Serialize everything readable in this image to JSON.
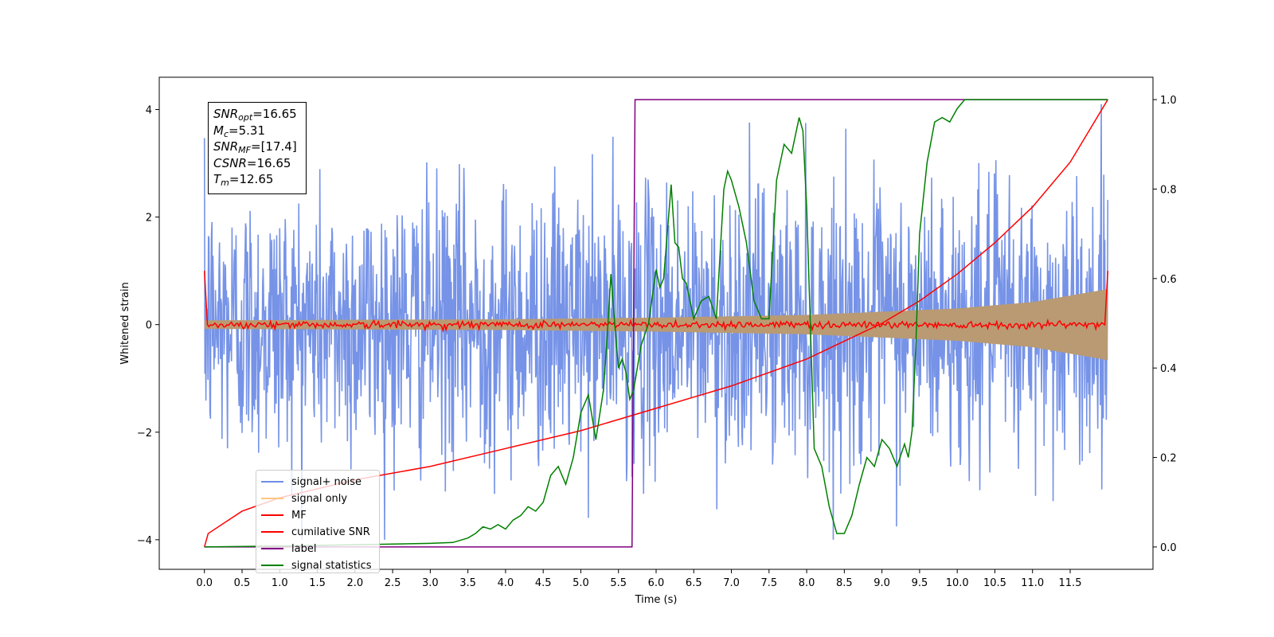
{
  "chart_data": {
    "type": "line",
    "xlabel": "Time (s)",
    "ylabel": "Whitened strain",
    "xlim": [
      -0.6,
      12.6
    ],
    "ylim": [
      -4.55,
      4.6
    ],
    "y2lim": [
      -0.05,
      1.05
    ],
    "x_ticks": [
      "0.0",
      "0.5",
      "1.0",
      "1.5",
      "2.0",
      "2.5",
      "3.0",
      "3.5",
      "4.0",
      "4.5",
      "5.0",
      "5.5",
      "6.0",
      "6.5",
      "7.0",
      "7.5",
      "8.0",
      "8.5",
      "9.0",
      "9.5",
      "10.0",
      "10.5",
      "11.0",
      "11.5"
    ],
    "y_ticks": [
      "4",
      "2",
      "0",
      "−2",
      "−4"
    ],
    "y2_ticks": [
      "1.0",
      "0.8",
      "0.6",
      "0.4",
      "0.2",
      "0.0"
    ],
    "annotation": {
      "snr_opt": "=16.65",
      "mc": "=5.31",
      "snr_mf": "=[17.4]",
      "csnr": "=16.65",
      "tm": "=12.65"
    },
    "series": [
      {
        "name": "signal+ noise",
        "color": "#6f8de6",
        "axis": "left",
        "description_values": {
          "amplitude_envelope": 2.8,
          "t_start": 0.0,
          "t_end": 12.0
        }
      },
      {
        "name": "signal only",
        "color": "#ffb347",
        "axis": "left",
        "envelope": {
          "t": [
            0.0,
            2.0,
            4.0,
            6.0,
            8.0,
            10.0,
            11.0,
            12.0
          ],
          "amp": [
            0.08,
            0.09,
            0.1,
            0.13,
            0.18,
            0.3,
            0.42,
            0.66
          ]
        }
      },
      {
        "name": "MF",
        "color": "#ff0000",
        "axis": "left",
        "description_values": {
          "baseline": 0.0,
          "start_value": 1.0,
          "end_value": 1.0
        }
      },
      {
        "name": "cumilative SNR",
        "color": "#ff0000",
        "axis": "right",
        "x": [
          0.0,
          0.05,
          0.5,
          1.0,
          2.0,
          3.0,
          4.0,
          5.0,
          6.0,
          7.0,
          8.0,
          8.5,
          9.0,
          9.5,
          10.0,
          10.5,
          11.0,
          11.5,
          12.0
        ],
        "y": [
          0.0,
          0.03,
          0.08,
          0.11,
          0.15,
          0.18,
          0.22,
          0.26,
          0.31,
          0.36,
          0.42,
          0.46,
          0.5,
          0.55,
          0.61,
          0.68,
          0.76,
          0.86,
          1.0
        ]
      },
      {
        "name": "label",
        "color": "#800080",
        "axis": "right",
        "x": [
          0.0,
          5.68,
          5.72,
          12.0
        ],
        "y": [
          0.0,
          0.0,
          1.0,
          1.0
        ]
      },
      {
        "name": "signal statistics",
        "color": "#008000",
        "axis": "right",
        "x": [
          0.0,
          1.0,
          2.0,
          3.0,
          3.3,
          3.5,
          3.6,
          3.7,
          3.8,
          3.9,
          4.0,
          4.1,
          4.2,
          4.3,
          4.4,
          4.5,
          4.6,
          4.7,
          4.8,
          4.9,
          5.0,
          5.1,
          5.2,
          5.3,
          5.35,
          5.4,
          5.45,
          5.5,
          5.55,
          5.6,
          5.65,
          5.7,
          5.8,
          5.9,
          6.0,
          6.05,
          6.1,
          6.2,
          6.25,
          6.3,
          6.35,
          6.4,
          6.5,
          6.6,
          6.7,
          6.8,
          6.9,
          6.95,
          7.0,
          7.1,
          7.2,
          7.3,
          7.4,
          7.5,
          7.6,
          7.7,
          7.8,
          7.85,
          7.9,
          7.95,
          8.0,
          8.1,
          8.2,
          8.3,
          8.4,
          8.5,
          8.6,
          8.7,
          8.8,
          8.9,
          9.0,
          9.1,
          9.2,
          9.3,
          9.35,
          9.4,
          9.45,
          9.5,
          9.6,
          9.7,
          9.8,
          9.9,
          10.0,
          10.1,
          10.2,
          10.4,
          11.0,
          12.0
        ],
        "y": [
          0.0,
          0.002,
          0.005,
          0.008,
          0.01,
          0.02,
          0.03,
          0.045,
          0.04,
          0.05,
          0.04,
          0.06,
          0.07,
          0.09,
          0.08,
          0.1,
          0.16,
          0.18,
          0.14,
          0.2,
          0.3,
          0.34,
          0.24,
          0.35,
          0.47,
          0.61,
          0.5,
          0.4,
          0.42,
          0.39,
          0.33,
          0.35,
          0.45,
          0.5,
          0.62,
          0.58,
          0.6,
          0.81,
          0.68,
          0.67,
          0.6,
          0.59,
          0.51,
          0.55,
          0.56,
          0.51,
          0.8,
          0.84,
          0.82,
          0.76,
          0.68,
          0.55,
          0.51,
          0.51,
          0.82,
          0.9,
          0.88,
          0.92,
          0.96,
          0.93,
          0.76,
          0.22,
          0.18,
          0.09,
          0.03,
          0.03,
          0.07,
          0.14,
          0.2,
          0.18,
          0.24,
          0.22,
          0.18,
          0.23,
          0.2,
          0.26,
          0.45,
          0.7,
          0.86,
          0.95,
          0.96,
          0.95,
          0.98,
          1.0,
          1.0,
          1.0,
          1.0,
          1.0
        ]
      }
    ],
    "legend_position": "lower-left"
  },
  "legend": {
    "items": [
      "signal+ noise",
      "signal only",
      "MF",
      "cumilative SNR",
      "label",
      "signal statistics"
    ]
  }
}
